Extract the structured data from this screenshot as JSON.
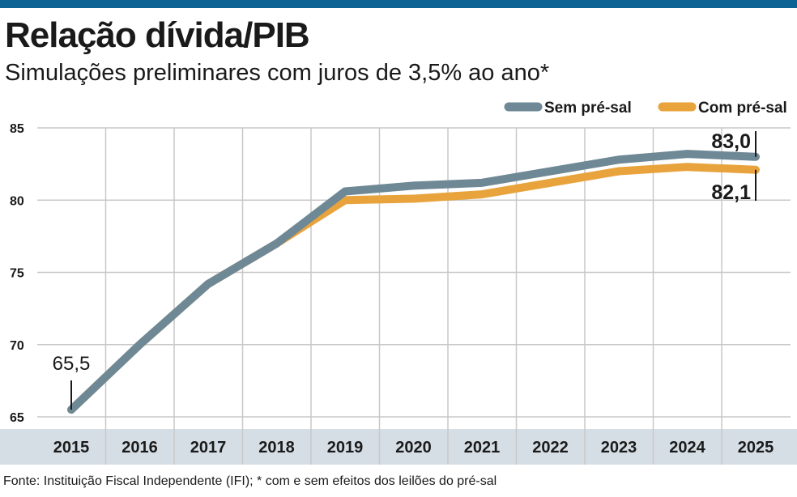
{
  "header": {
    "title": "Relação dívida/PIB",
    "subtitle": "Simulações preliminares com juros de 3,5% ao ano*"
  },
  "source": "Fonte: Instituição Fiscal Independente (IFI); * com e sem efeitos dos leilões do pré-sal",
  "colors": {
    "top_bar": "#0d6494",
    "axis_band": "#d6dee5",
    "sem_pre_sal": "#6e8895",
    "com_pre_sal": "#e8a33c",
    "gridline": "#c8c8c8"
  },
  "chart_data": {
    "type": "line",
    "title": "Relação dívida/PIB",
    "subtitle": "Simulações preliminares com juros de 3,5% ao ano*",
    "x": [
      "2015",
      "2016",
      "2017",
      "2018",
      "2019",
      "2020",
      "2021",
      "2022",
      "2023",
      "2024",
      "2025"
    ],
    "y_ticks": [
      "65",
      "70",
      "75",
      "80",
      "85"
    ],
    "ylim": [
      65,
      85
    ],
    "grid": true,
    "legend": "top-right",
    "series": [
      {
        "name": "Sem pré-sal",
        "values": [
          65.5,
          70.0,
          74.2,
          77.0,
          80.6,
          81.0,
          81.2,
          82.0,
          82.8,
          83.2,
          83.0
        ]
      },
      {
        "name": "Com pré-sal",
        "values": [
          65.5,
          70.0,
          74.2,
          77.0,
          80.0,
          80.1,
          80.4,
          81.2,
          82.0,
          82.3,
          82.1
        ]
      }
    ],
    "annotations": [
      {
        "text": "65,5",
        "series": "Sem pré-sal",
        "x": "2015"
      },
      {
        "text": "83,0",
        "series": "Sem pré-sal",
        "x": "2025"
      },
      {
        "text": "82,1",
        "series": "Com pré-sal",
        "x": "2025"
      }
    ]
  }
}
